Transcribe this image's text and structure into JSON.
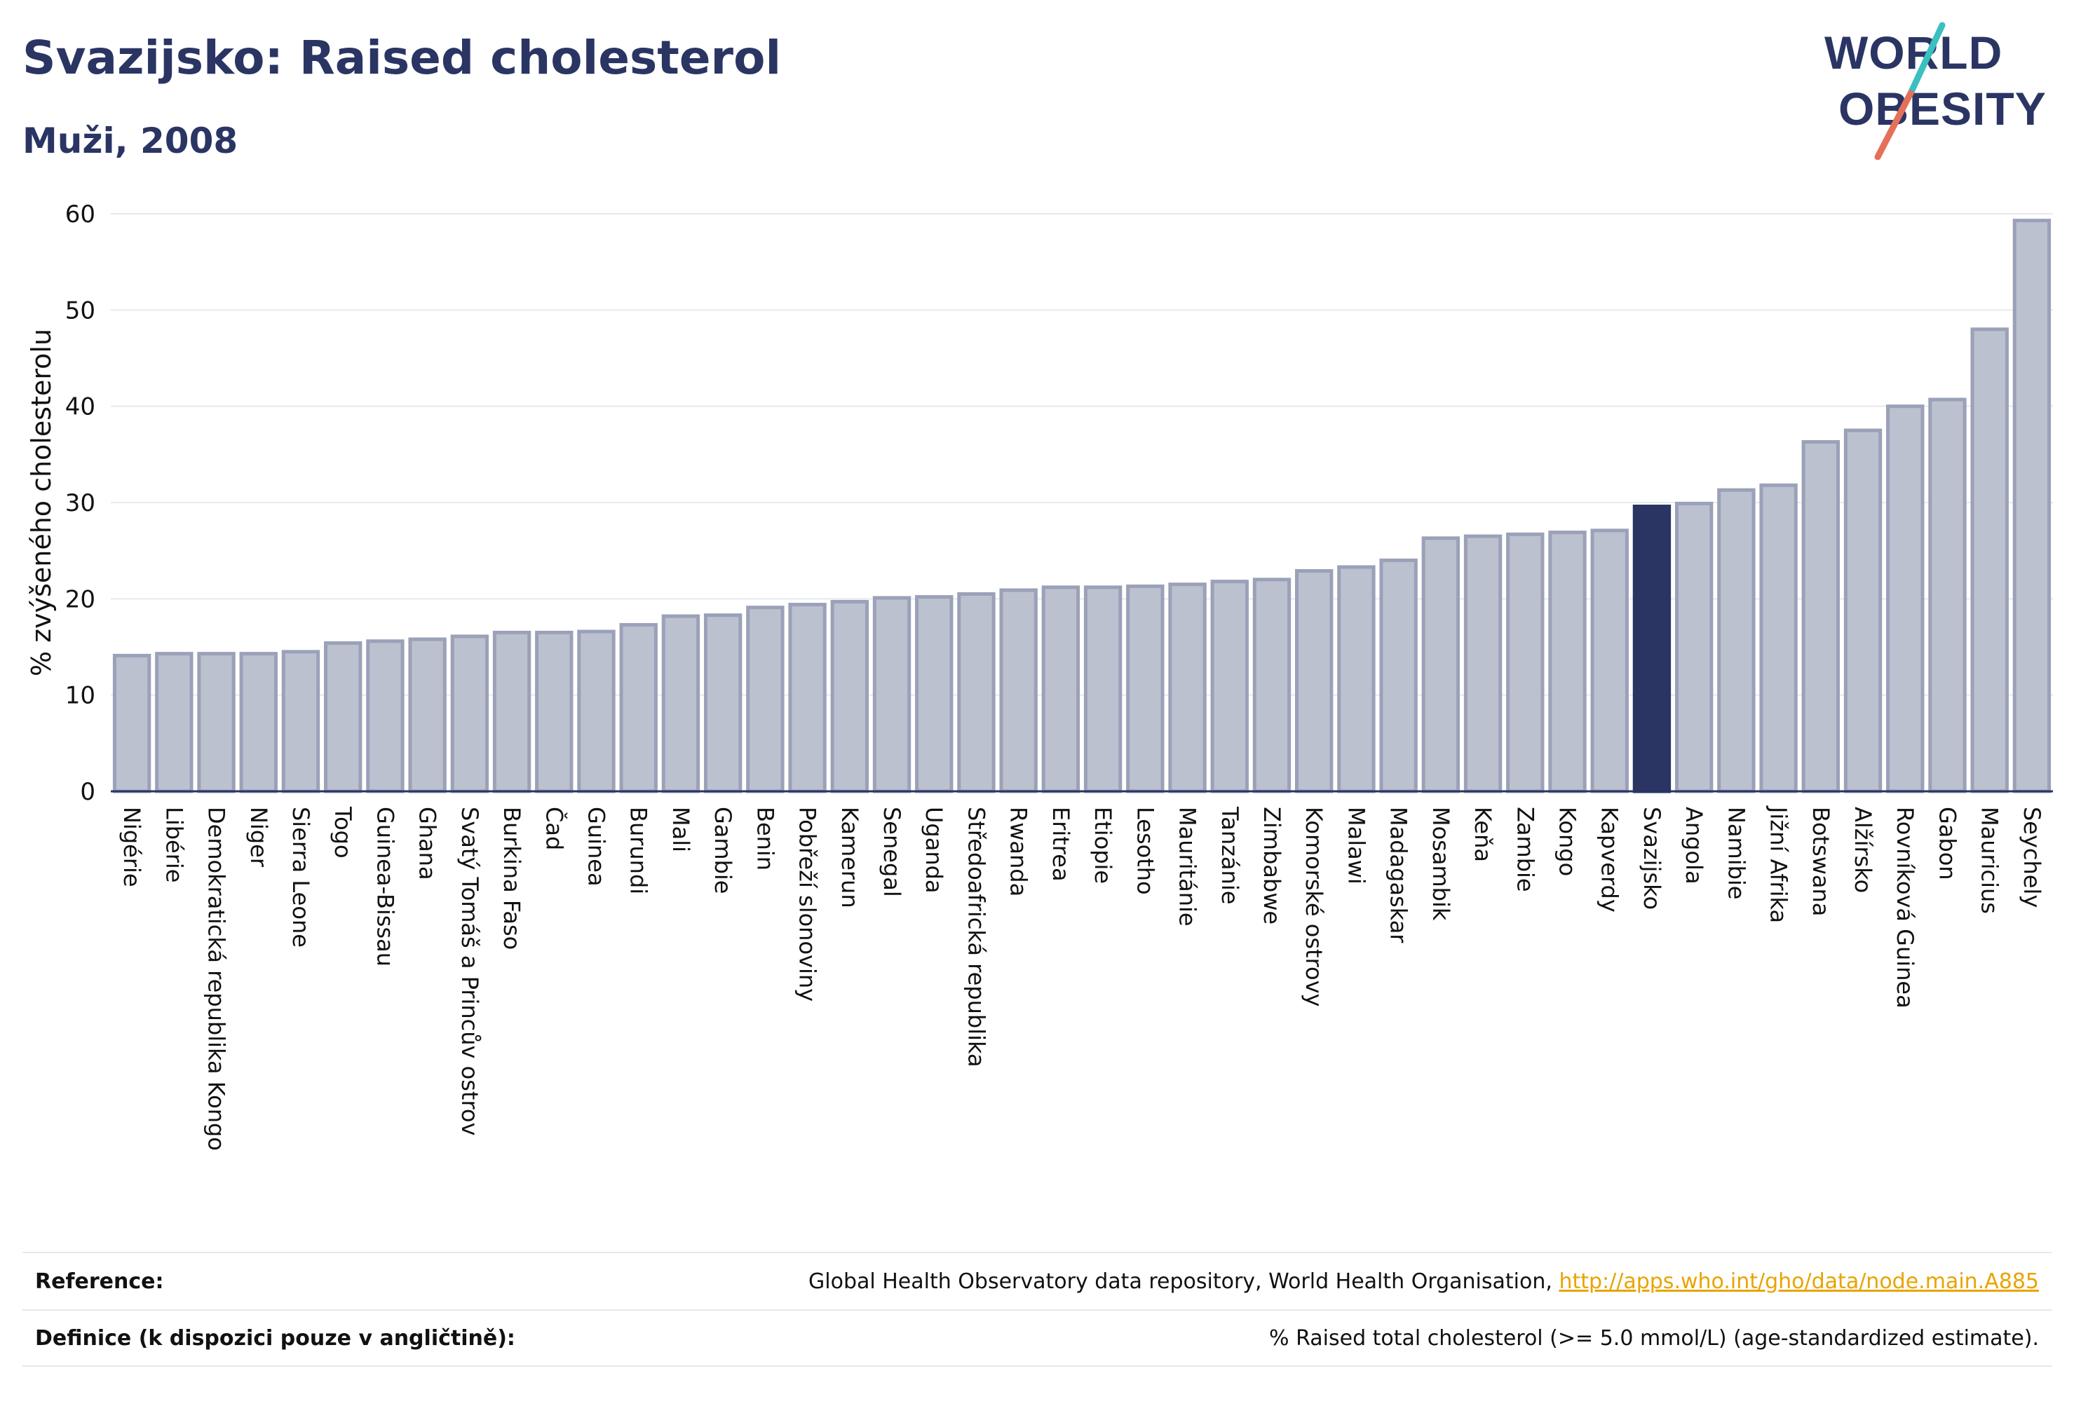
{
  "header": {
    "title": "Svazijsko: Raised cholesterol",
    "subtitle": "Muži, 2008"
  },
  "logo": {
    "line1": "WORLD",
    "line2": "OBESITY"
  },
  "colors": {
    "highlight": "#2a3563",
    "bar_fill": "#bcc1cf",
    "bar_stroke": "#9aa1b8",
    "slash_red": "#e5705a",
    "slash_teal": "#3bbfbf"
  },
  "chart_data": {
    "type": "bar",
    "ylabel": "% zvýšeného cholesterolu",
    "xlabel": "",
    "ylim": [
      0,
      60
    ],
    "yticks": [
      0,
      10,
      20,
      30,
      40,
      50,
      60
    ],
    "grid": true,
    "highlight": "Svazijsko",
    "categories": [
      "Nigérie",
      "Libérie",
      "Demokratická republika Kongo",
      "Niger",
      "Sierra Leone",
      "Togo",
      "Guinea-Bissau",
      "Ghana",
      "Svatý Tomáš a Princův ostrov",
      "Burkina Faso",
      "Čad",
      "Guinea",
      "Burundi",
      "Mali",
      "Gambie",
      "Benin",
      "Pobřeží slonoviny",
      "Kamerun",
      "Senegal",
      "Uganda",
      "Středoafrická republika",
      "Rwanda",
      "Eritrea",
      "Etiopie",
      "Lesotho",
      "Mauritánie",
      "Tanzánie",
      "Zimbabwe",
      "Komorské ostrovy",
      "Malawi",
      "Madagaskar",
      "Mosambik",
      "Keňa",
      "Zambie",
      "Kongo",
      "Kapverdy",
      "Svazijsko",
      "Angola",
      "Namibie",
      "Jižní Afrika",
      "Botswana",
      "Alžírsko",
      "Rovníková Guinea",
      "Gabon",
      "Mauricius",
      "Seychely"
    ],
    "values": [
      14.1,
      14.3,
      14.3,
      14.3,
      14.5,
      15.4,
      15.6,
      15.8,
      16.1,
      16.5,
      16.5,
      16.6,
      17.3,
      18.2,
      18.3,
      19.1,
      19.4,
      19.7,
      20.1,
      20.2,
      20.5,
      20.9,
      21.2,
      21.2,
      21.3,
      21.5,
      21.8,
      22.0,
      22.9,
      23.3,
      24.0,
      26.3,
      26.5,
      26.7,
      26.9,
      27.1,
      29.6,
      29.9,
      31.3,
      31.8,
      36.3,
      37.5,
      40.0,
      40.7,
      48.0,
      59.3
    ]
  },
  "reference": {
    "label": "Reference:",
    "text": "Global Health Observatory data repository, World Health Organisation, ",
    "link": "http://apps.who.int/gho/data/node.main.A885"
  },
  "definition": {
    "label": "Definice (k dispozici pouze v angličtině):",
    "text": "% Raised total cholesterol (>= 5.0 mmol/L) (age-standardized estimate)."
  }
}
